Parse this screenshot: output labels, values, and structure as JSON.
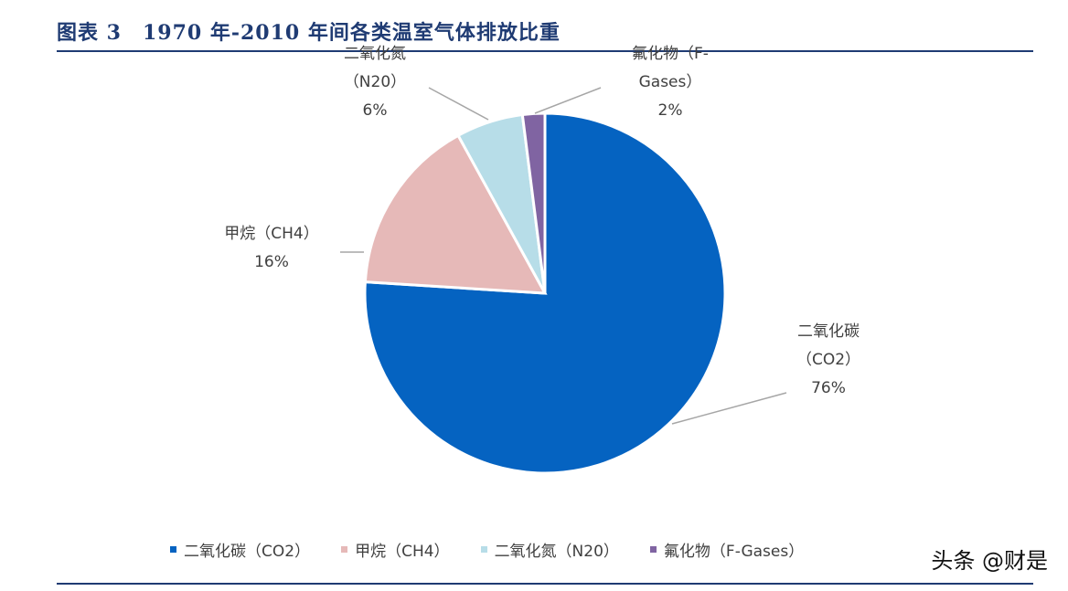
{
  "header": {
    "title": "图表 3　1970 年-2010 年间各类温室气体排放比重"
  },
  "watermark": "头条 @财是",
  "chart_data": {
    "type": "pie",
    "title": "1970 年-2010 年间各类温室气体排放比重",
    "unit": "%",
    "slices": [
      {
        "name": "二氧化碳（CO2）",
        "label_lines": [
          "二氧化碳",
          "（CO2）",
          "76%"
        ],
        "value": 76,
        "color": "#0563c1"
      },
      {
        "name": "甲烷（CH4）",
        "label_lines": [
          "甲烷（CH4）",
          "16%"
        ],
        "value": 16,
        "color": "#e6b9b8"
      },
      {
        "name": "二氧化氮（N20）",
        "label_lines": [
          "二氧化氮",
          "（N20）",
          "6%"
        ],
        "value": 6,
        "color": "#b7dde8"
      },
      {
        "name": "氟化物（F-Gases）",
        "label_lines": [
          "氟化物（F-",
          "Gases）",
          "2%"
        ],
        "value": 2,
        "color": "#8064a2"
      }
    ],
    "legend": [
      "二氧化碳（CO2）",
      "甲烷（CH4）",
      "二氧化氮（N20）",
      "氟化物（F-Gases）"
    ],
    "legend_position": "bottom"
  }
}
